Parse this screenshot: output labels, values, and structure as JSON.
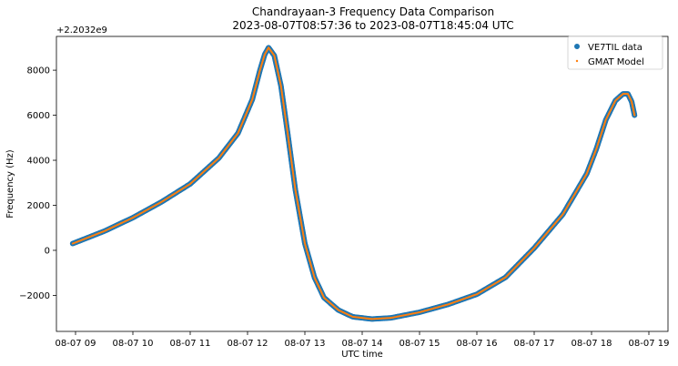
{
  "chart_data": {
    "type": "scatter",
    "title": "Chandrayaan-3 Frequency Data Comparison",
    "subtitle": "2023-08-07T08:57:36 to 2023-08-07T18:45:04 UTC",
    "xlabel": "UTC time",
    "ylabel": "Frequency (Hz)",
    "y_offset_label": "+2.2032e9",
    "xlim": [
      "2023-08-07 08:40",
      "2023-08-07 19:20"
    ],
    "ylim": [
      -3600,
      9500
    ],
    "x_ticks": [
      {
        "value": "2023-08-07 09:00",
        "label": "08-07 09"
      },
      {
        "value": "2023-08-07 10:00",
        "label": "08-07 10"
      },
      {
        "value": "2023-08-07 11:00",
        "label": "08-07 11"
      },
      {
        "value": "2023-08-07 12:00",
        "label": "08-07 12"
      },
      {
        "value": "2023-08-07 13:00",
        "label": "08-07 13"
      },
      {
        "value": "2023-08-07 14:00",
        "label": "08-07 14"
      },
      {
        "value": "2023-08-07 15:00",
        "label": "08-07 15"
      },
      {
        "value": "2023-08-07 16:00",
        "label": "08-07 16"
      },
      {
        "value": "2023-08-07 17:00",
        "label": "08-07 17"
      },
      {
        "value": "2023-08-07 18:00",
        "label": "08-07 18"
      },
      {
        "value": "2023-08-07 19:00",
        "label": "08-07 19"
      }
    ],
    "y_ticks": [
      {
        "value": -2000,
        "label": "−2000"
      },
      {
        "value": 0,
        "label": "0"
      },
      {
        "value": 2000,
        "label": "2000"
      },
      {
        "value": 4000,
        "label": "4000"
      },
      {
        "value": 6000,
        "label": "6000"
      },
      {
        "value": 8000,
        "label": "8000"
      }
    ],
    "grid": false,
    "legend_position": "top-right",
    "series": [
      {
        "name": "VE7TIL data",
        "marker": "circle",
        "color": "#1f77b4",
        "x": [
          "2023-08-07 08:57",
          "2023-08-07 09:30",
          "2023-08-07 10:00",
          "2023-08-07 10:30",
          "2023-08-07 11:00",
          "2023-08-07 11:30",
          "2023-08-07 11:50",
          "2023-08-07 12:05",
          "2023-08-07 12:13",
          "2023-08-07 12:18",
          "2023-08-07 12:22",
          "2023-08-07 12:28",
          "2023-08-07 12:35",
          "2023-08-07 12:42",
          "2023-08-07 12:50",
          "2023-08-07 13:00",
          "2023-08-07 13:10",
          "2023-08-07 13:20",
          "2023-08-07 13:35",
          "2023-08-07 13:50",
          "2023-08-07 14:10",
          "2023-08-07 14:30",
          "2023-08-07 15:00",
          "2023-08-07 15:30",
          "2023-08-07 16:00",
          "2023-08-07 16:30",
          "2023-08-07 17:00",
          "2023-08-07 17:30",
          "2023-08-07 17:55",
          "2023-08-07 18:05",
          "2023-08-07 18:15",
          "2023-08-07 18:25",
          "2023-08-07 18:33",
          "2023-08-07 18:38",
          "2023-08-07 18:42",
          "2023-08-07 18:45"
        ],
        "y": [
          300,
          850,
          1450,
          2150,
          2950,
          4100,
          5200,
          6700,
          8000,
          8700,
          9000,
          8650,
          7300,
          5200,
          2700,
          300,
          -1200,
          -2100,
          -2650,
          -2950,
          -3050,
          -3000,
          -2750,
          -2400,
          -1950,
          -1200,
          100,
          1600,
          3400,
          4500,
          5800,
          6650,
          6950,
          6950,
          6600,
          6000
        ]
      },
      {
        "name": "GMAT Model",
        "marker": "dot",
        "color": "#ff7f0e",
        "x": [
          "2023-08-07 08:57",
          "2023-08-07 09:30",
          "2023-08-07 10:00",
          "2023-08-07 10:30",
          "2023-08-07 11:00",
          "2023-08-07 11:30",
          "2023-08-07 11:50",
          "2023-08-07 12:05",
          "2023-08-07 12:13",
          "2023-08-07 12:18",
          "2023-08-07 12:22",
          "2023-08-07 12:28",
          "2023-08-07 12:35",
          "2023-08-07 12:42",
          "2023-08-07 12:50",
          "2023-08-07 13:00",
          "2023-08-07 13:10",
          "2023-08-07 13:20",
          "2023-08-07 13:35",
          "2023-08-07 13:50",
          "2023-08-07 14:10",
          "2023-08-07 14:30",
          "2023-08-07 15:00",
          "2023-08-07 15:30",
          "2023-08-07 16:00",
          "2023-08-07 16:30",
          "2023-08-07 17:00",
          "2023-08-07 17:30",
          "2023-08-07 17:55",
          "2023-08-07 18:05",
          "2023-08-07 18:15",
          "2023-08-07 18:25",
          "2023-08-07 18:33",
          "2023-08-07 18:38",
          "2023-08-07 18:42",
          "2023-08-07 18:45"
        ],
        "y": [
          300,
          850,
          1450,
          2150,
          2950,
          4100,
          5200,
          6700,
          8000,
          8700,
          9000,
          8650,
          7300,
          5200,
          2700,
          300,
          -1200,
          -2100,
          -2650,
          -2950,
          -3050,
          -3000,
          -2750,
          -2400,
          -1950,
          -1200,
          100,
          1600,
          3400,
          4500,
          5800,
          6650,
          6950,
          6950,
          6600,
          6000
        ]
      }
    ]
  }
}
